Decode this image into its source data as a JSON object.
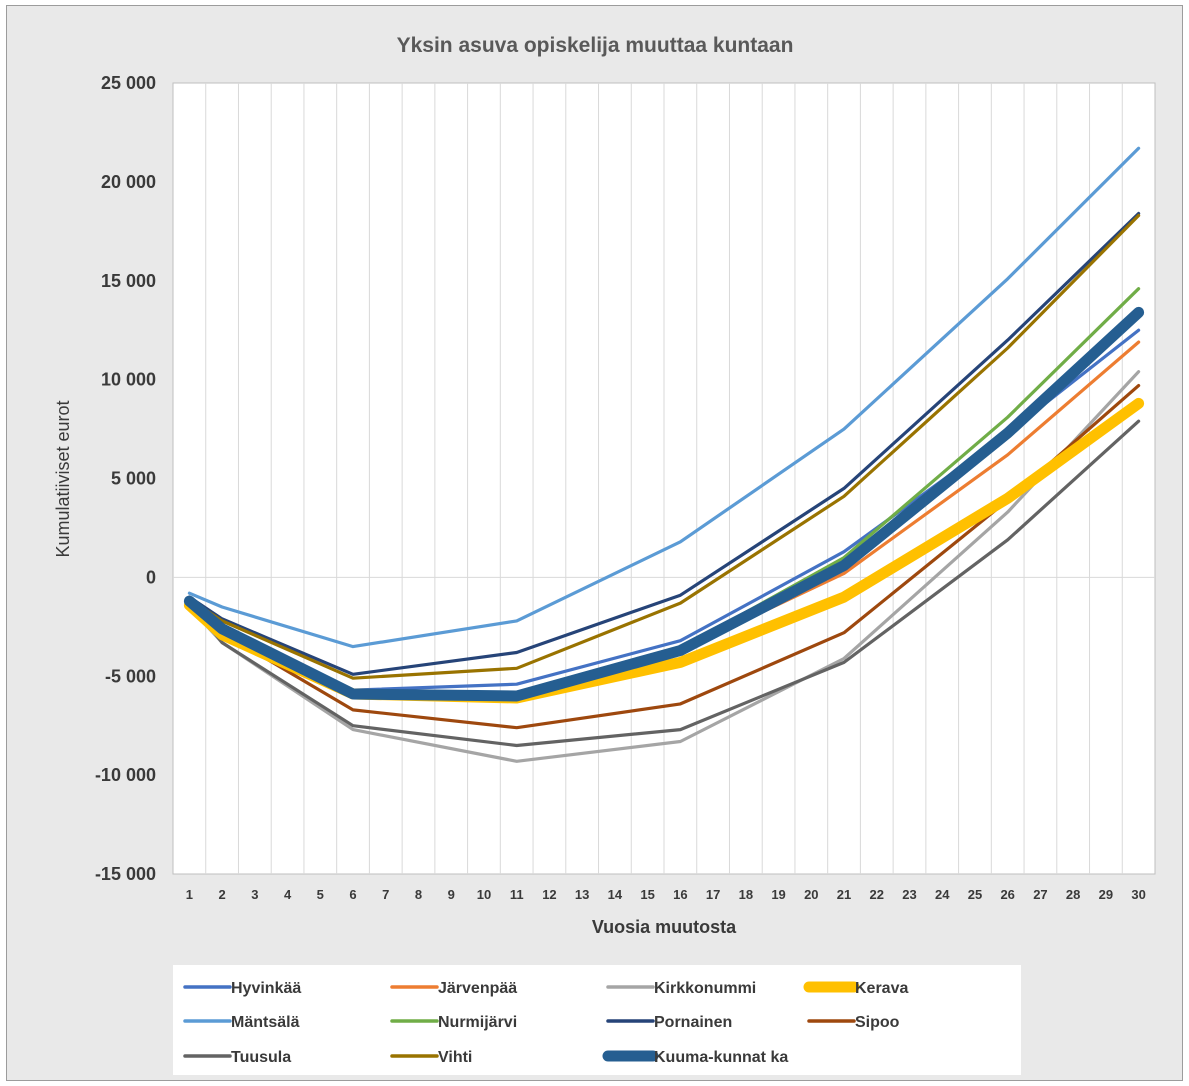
{
  "chart_data": {
    "type": "line",
    "title": "Yksin asuva opiskelija muuttaa kuntaan",
    "xlabel": "Vuosia muutosta",
    "ylabel": "Kumulatiiviset eurot",
    "ylim": [
      -15000,
      25000
    ],
    "y_ticks": [
      25000,
      20000,
      15000,
      10000,
      5000,
      0,
      -5000,
      -10000,
      -15000
    ],
    "y_tick_labels": [
      "25 000",
      "20 000",
      "15 000",
      "10 000",
      "5 000",
      "0",
      "-5 000",
      "-10 000",
      "-15 000"
    ],
    "x_categories": [
      "1",
      "2",
      "3",
      "4",
      "5",
      "6",
      "7",
      "8",
      "9",
      "10",
      "11",
      "12",
      "13",
      "14",
      "15",
      "16",
      "17",
      "18",
      "19",
      "20",
      "21",
      "22",
      "23",
      "24",
      "25",
      "26",
      "27",
      "28",
      "29",
      "30"
    ],
    "x_points": [
      1,
      2,
      6,
      11,
      16,
      21,
      26,
      30
    ],
    "grid": "vertical gridlines at each category, horizontal line at 0",
    "legend_position": "bottom",
    "series": [
      {
        "name": "Hyvinkää",
        "color": "#4472c4",
        "weight": "thin",
        "values": [
          -1300,
          -2600,
          -5700,
          -5400,
          -3200,
          1300,
          7300,
          12500
        ]
      },
      {
        "name": "Järvenpää",
        "color": "#ed7d31",
        "weight": "thin",
        "values": [
          -1400,
          -2900,
          -5900,
          -6000,
          -3700,
          200,
          6200,
          11900
        ]
      },
      {
        "name": "Kirkkonummi",
        "color": "#a5a5a5",
        "weight": "thin",
        "values": [
          -1500,
          -3300,
          -7700,
          -9300,
          -8300,
          -4100,
          3300,
          10400
        ]
      },
      {
        "name": "Kerava",
        "color": "#ffc000",
        "weight": "thick",
        "values": [
          -1400,
          -2900,
          -5900,
          -6100,
          -4300,
          -1000,
          4000,
          8800
        ]
      },
      {
        "name": "Mäntsälä",
        "color": "#5b9bd5",
        "weight": "thin",
        "values": [
          -800,
          -1500,
          -3500,
          -2200,
          1800,
          7500,
          15100,
          21700
        ]
      },
      {
        "name": "Nurmijärvi",
        "color": "#70ad47",
        "weight": "thin",
        "values": [
          -1300,
          -2600,
          -5800,
          -6000,
          -3600,
          1000,
          8100,
          14600
        ]
      },
      {
        "name": "Pornainen",
        "color": "#264478",
        "weight": "thin",
        "values": [
          -1000,
          -2100,
          -4900,
          -3800,
          -900,
          4500,
          12000,
          18400
        ]
      },
      {
        "name": "Sipoo",
        "color": "#9e480e",
        "weight": "thin",
        "values": [
          -1300,
          -2800,
          -6700,
          -7600,
          -6400,
          -2800,
          3900,
          9700
        ]
      },
      {
        "name": "Tuusula",
        "color": "#636363",
        "weight": "thin",
        "values": [
          -1200,
          -3300,
          -7500,
          -8500,
          -7700,
          -4300,
          1900,
          7900
        ]
      },
      {
        "name": "Vihti",
        "color": "#997300",
        "weight": "thin",
        "values": [
          -1100,
          -2200,
          -5100,
          -4600,
          -1300,
          4100,
          11600,
          18300
        ]
      },
      {
        "name": "Kuuma-kunnat ka",
        "color": "#255e91",
        "weight": "thick",
        "values": [
          -1200,
          -2600,
          -5900,
          -6000,
          -3700,
          600,
          7300,
          13400
        ]
      }
    ]
  }
}
